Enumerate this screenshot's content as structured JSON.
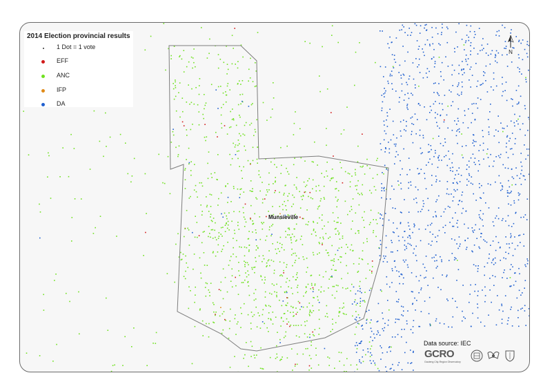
{
  "legend": {
    "title": "2014 Election provincial results",
    "dot_scale_label": "1 Dot = 1 vote",
    "parties": [
      {
        "label": "EFF",
        "color": "#d11a1a"
      },
      {
        "label": "ANC",
        "color": "#6fe11f"
      },
      {
        "label": "IFP",
        "color": "#e08a17"
      },
      {
        "label": "DA",
        "color": "#1f5fcf"
      }
    ]
  },
  "place_label": "Munsieville",
  "north_label": "N",
  "data_source": "Data source: IEC",
  "logo": {
    "name": "GCRO",
    "tagline": "Gauteng City-Region Observatory"
  },
  "colors": {
    "boundary": "#7d7d7d",
    "background": "#f7f7f7"
  }
}
